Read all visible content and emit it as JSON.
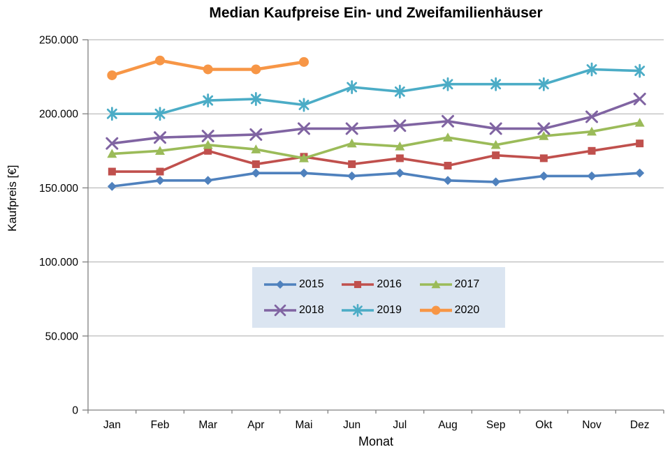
{
  "chart_data": {
    "type": "line",
    "title": "Median Kaufpreise Ein- und Zweifamilienhäuser",
    "xlabel": "Monat",
    "ylabel": "Kaufpreis [€]",
    "categories": [
      "Jan",
      "Feb",
      "Mar",
      "Apr",
      "Mai",
      "Jun",
      "Jul",
      "Aug",
      "Sep",
      "Okt",
      "Nov",
      "Dez"
    ],
    "ylim": [
      0,
      250000
    ],
    "y_ticks": [
      0,
      50000,
      100000,
      150000,
      200000,
      250000
    ],
    "y_tick_labels": [
      "0",
      "50.000",
      "100.000",
      "150.000",
      "200.000",
      "250.000"
    ],
    "grid": "horizontal-only",
    "legend_position": "inside-center-lower",
    "series": [
      {
        "name": "2015",
        "color": "#4F81BD",
        "marker": "diamond",
        "values": [
          151000,
          155000,
          155000,
          160000,
          160000,
          158000,
          160000,
          155000,
          154000,
          158000,
          158000,
          160000
        ]
      },
      {
        "name": "2016",
        "color": "#C0504D",
        "marker": "square",
        "values": [
          161000,
          161000,
          175000,
          166000,
          171000,
          166000,
          170000,
          165000,
          172000,
          170000,
          175000,
          180000
        ]
      },
      {
        "name": "2017",
        "color": "#9BBB59",
        "marker": "triangle",
        "values": [
          173000,
          175000,
          179000,
          176000,
          170000,
          180000,
          178000,
          184000,
          179000,
          185000,
          188000,
          194000
        ]
      },
      {
        "name": "2018",
        "color": "#8064A2",
        "marker": "x",
        "values": [
          180000,
          184000,
          185000,
          186000,
          190000,
          190000,
          192000,
          195000,
          190000,
          190000,
          198000,
          210000
        ]
      },
      {
        "name": "2019",
        "color": "#4BACC6",
        "marker": "asterisk",
        "values": [
          200000,
          200000,
          209000,
          210000,
          206000,
          218000,
          215000,
          220000,
          220000,
          220000,
          230000,
          229000
        ]
      },
      {
        "name": "2020",
        "color": "#F79646",
        "marker": "circle",
        "values": [
          226000,
          236000,
          230000,
          230000,
          235000,
          null,
          null,
          null,
          null,
          null,
          null,
          null
        ]
      }
    ]
  },
  "style": {
    "axis_line_color": "#808080",
    "grid_color": "#ABABAB",
    "legend_background": "#DBE5F1",
    "text_color": "#000000"
  }
}
